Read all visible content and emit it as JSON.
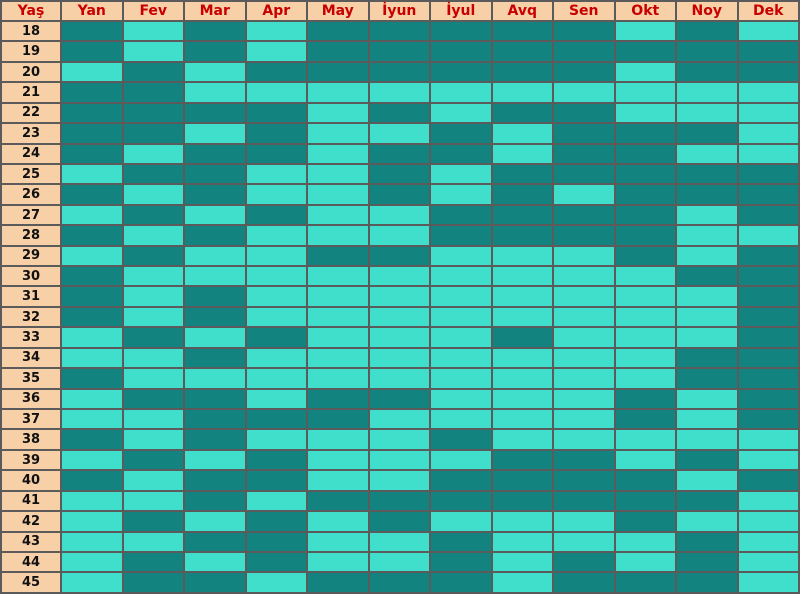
{
  "chart_data": {
    "type": "table",
    "corner_label": "Yaş",
    "months": [
      "Yan",
      "Fev",
      "Mar",
      "Apr",
      "May",
      "İyun",
      "İyul",
      "Avq",
      "Sen",
      "Okt",
      "Noy",
      "Dek"
    ],
    "ages": [
      "18",
      "19",
      "20",
      "21",
      "22",
      "23",
      "24",
      "25",
      "26",
      "27",
      "28",
      "29",
      "30",
      "31",
      "32",
      "33",
      "34",
      "35",
      "36",
      "37",
      "38",
      "39",
      "40",
      "41",
      "42",
      "43",
      "44",
      "45"
    ],
    "legend_colors": {
      "D": "#138380",
      "L": "#3fdfcc"
    },
    "rows": [
      [
        "D",
        "L",
        "D",
        "L",
        "D",
        "D",
        "D",
        "D",
        "D",
        "L",
        "D",
        "L"
      ],
      [
        "D",
        "L",
        "D",
        "L",
        "D",
        "D",
        "D",
        "D",
        "D",
        "D",
        "D",
        "D"
      ],
      [
        "L",
        "D",
        "L",
        "D",
        "D",
        "D",
        "D",
        "D",
        "D",
        "L",
        "D",
        "D"
      ],
      [
        "D",
        "D",
        "L",
        "L",
        "L",
        "L",
        "L",
        "L",
        "L",
        "L",
        "L",
        "L"
      ],
      [
        "D",
        "D",
        "D",
        "D",
        "L",
        "D",
        "L",
        "D",
        "D",
        "L",
        "L",
        "L"
      ],
      [
        "D",
        "D",
        "L",
        "D",
        "L",
        "L",
        "D",
        "L",
        "D",
        "D",
        "D",
        "L"
      ],
      [
        "D",
        "L",
        "D",
        "D",
        "L",
        "D",
        "D",
        "L",
        "D",
        "D",
        "L",
        "L"
      ],
      [
        "L",
        "D",
        "D",
        "L",
        "L",
        "D",
        "L",
        "D",
        "D",
        "D",
        "D",
        "D"
      ],
      [
        "D",
        "L",
        "D",
        "L",
        "L",
        "D",
        "L",
        "D",
        "L",
        "D",
        "D",
        "D"
      ],
      [
        "L",
        "D",
        "L",
        "D",
        "L",
        "L",
        "D",
        "D",
        "D",
        "D",
        "L",
        "D"
      ],
      [
        "D",
        "L",
        "D",
        "L",
        "L",
        "L",
        "D",
        "D",
        "D",
        "D",
        "L",
        "L"
      ],
      [
        "L",
        "D",
        "L",
        "L",
        "D",
        "D",
        "L",
        "L",
        "L",
        "D",
        "L",
        "D"
      ],
      [
        "D",
        "L",
        "L",
        "L",
        "L",
        "L",
        "L",
        "L",
        "L",
        "L",
        "D",
        "D"
      ],
      [
        "D",
        "L",
        "D",
        "L",
        "L",
        "L",
        "L",
        "L",
        "L",
        "L",
        "L",
        "D"
      ],
      [
        "D",
        "L",
        "D",
        "L",
        "L",
        "L",
        "L",
        "L",
        "L",
        "L",
        "L",
        "D"
      ],
      [
        "L",
        "D",
        "L",
        "D",
        "L",
        "L",
        "L",
        "D",
        "L",
        "L",
        "L",
        "D"
      ],
      [
        "L",
        "L",
        "D",
        "L",
        "L",
        "L",
        "L",
        "L",
        "L",
        "L",
        "D",
        "D"
      ],
      [
        "D",
        "L",
        "L",
        "L",
        "L",
        "L",
        "L",
        "L",
        "L",
        "L",
        "D",
        "D"
      ],
      [
        "L",
        "D",
        "D",
        "L",
        "D",
        "D",
        "L",
        "L",
        "L",
        "D",
        "L",
        "D"
      ],
      [
        "L",
        "L",
        "D",
        "D",
        "D",
        "L",
        "L",
        "L",
        "L",
        "D",
        "L",
        "D"
      ],
      [
        "D",
        "L",
        "D",
        "L",
        "L",
        "L",
        "D",
        "L",
        "L",
        "L",
        "L",
        "L"
      ],
      [
        "L",
        "D",
        "L",
        "D",
        "L",
        "L",
        "L",
        "D",
        "D",
        "L",
        "D",
        "L"
      ],
      [
        "D",
        "L",
        "D",
        "D",
        "L",
        "L",
        "D",
        "D",
        "D",
        "D",
        "L",
        "D"
      ],
      [
        "L",
        "L",
        "D",
        "L",
        "D",
        "D",
        "D",
        "D",
        "D",
        "D",
        "D",
        "L"
      ],
      [
        "L",
        "D",
        "L",
        "D",
        "L",
        "D",
        "L",
        "L",
        "L",
        "D",
        "L",
        "L"
      ],
      [
        "L",
        "L",
        "D",
        "D",
        "L",
        "L",
        "D",
        "L",
        "L",
        "L",
        "D",
        "L"
      ],
      [
        "L",
        "D",
        "L",
        "D",
        "L",
        "L",
        "D",
        "L",
        "D",
        "L",
        "D",
        "L"
      ],
      [
        "L",
        "D",
        "D",
        "L",
        "D",
        "D",
        "D",
        "L",
        "D",
        "D",
        "D",
        "L"
      ]
    ]
  }
}
